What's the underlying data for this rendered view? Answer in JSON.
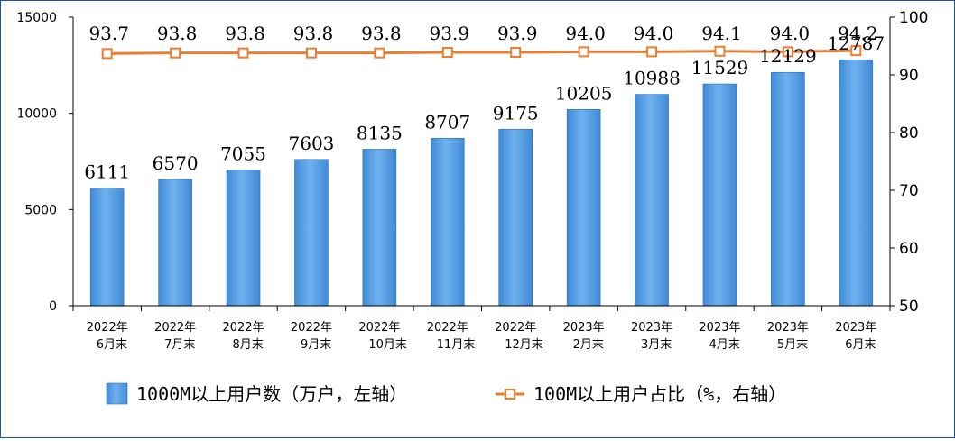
{
  "chart_data": {
    "type": "bar",
    "categories": [
      [
        "2022年",
        "6月末"
      ],
      [
        "2022年",
        "7月末"
      ],
      [
        "2022年",
        "8月末"
      ],
      [
        "2022年",
        "9月末"
      ],
      [
        "2022年",
        "10月末"
      ],
      [
        "2022年",
        "11月末"
      ],
      [
        "2022年",
        "12月末"
      ],
      [
        "2023年",
        "2月末"
      ],
      [
        "2023年",
        "3月末"
      ],
      [
        "2023年",
        "4月末"
      ],
      [
        "2023年",
        "5月末"
      ],
      [
        "2023年",
        "6月末"
      ]
    ],
    "series": [
      {
        "name": "1000M以上用户数（万户，左轴）",
        "type": "bar",
        "axis": "left",
        "color": "#5aa0e0",
        "values": [
          6111,
          6570,
          7055,
          7603,
          8135,
          8707,
          9175,
          10205,
          10988,
          11529,
          12129,
          12787
        ],
        "labels": [
          "6111",
          "6570",
          "7055",
          "7603",
          "8135",
          "8707",
          "9175",
          "10205",
          "10988",
          "11529",
          "12129",
          "12787"
        ]
      },
      {
        "name": "100M以上用户占比（%，右轴）",
        "type": "line",
        "axis": "right",
        "color": "#ed7d31",
        "values": [
          93.7,
          93.8,
          93.8,
          93.8,
          93.8,
          93.9,
          93.9,
          94.0,
          94.0,
          94.1,
          94.0,
          94.2
        ],
        "labels": [
          "93.7",
          "93.8",
          "93.8",
          "93.8",
          "93.8",
          "93.9",
          "93.9",
          "94.0",
          "94.0",
          "94.1",
          "94.0",
          "94.2"
        ]
      }
    ],
    "left_axis": {
      "ylim": [
        0,
        15000
      ],
      "ticks": [
        "0",
        "5000",
        "10000",
        "15000"
      ],
      "tick_values": [
        0,
        5000,
        10000,
        15000
      ]
    },
    "right_axis": {
      "ylim": [
        50,
        100
      ],
      "ticks": [
        "50",
        "60",
        "70",
        "80",
        "90",
        "100"
      ],
      "tick_values": [
        50,
        60,
        70,
        80,
        90,
        100
      ]
    },
    "grid": false,
    "legend_position": "bottom"
  }
}
